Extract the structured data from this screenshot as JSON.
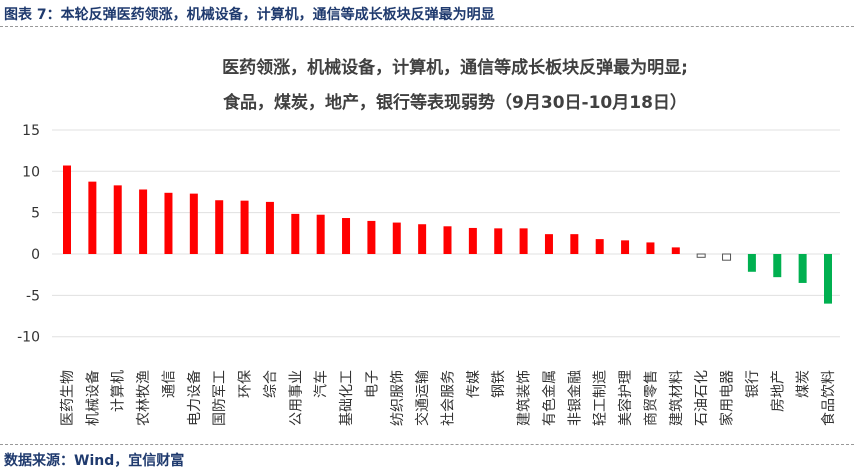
{
  "figure_title": "图表 7：本轮反弹医药领涨，机械设备，计算机，通信等成长板块反弹最为明显",
  "source": "数据来源：Wind，宜信财富",
  "colors": {
    "positive": "#ff0000",
    "negative": "#00b050",
    "near_zero": "#ffffff",
    "grid": "#e0e0e0"
  },
  "chart_data": {
    "type": "bar",
    "title_lines": [
      "医药领涨，机械设备，计算机，通信等成长板块反弹最为明显;",
      "食品，煤炭，地产，银行等表现弱势（9月30日-10月18日）"
    ],
    "categories": [
      "医药生物",
      "机械设备",
      "计算机",
      "农林牧渔",
      "通信",
      "电力设备",
      "国防军工",
      "环保",
      "综合",
      "公用事业",
      "汽车",
      "基础化工",
      "电子",
      "纺织服饰",
      "交通运输",
      "社会服务",
      "传媒",
      "钢铁",
      "建筑装饰",
      "有色金属",
      "非银金融",
      "轻工制造",
      "美容护理",
      "商贸零售",
      "建筑材料",
      "石油石化",
      "家用电器",
      "银行",
      "房地产",
      "煤炭",
      "食品饮料"
    ],
    "values": [
      10.7,
      8.75,
      8.3,
      7.8,
      7.4,
      7.3,
      6.5,
      6.45,
      6.3,
      4.85,
      4.75,
      4.35,
      4.0,
      3.8,
      3.6,
      3.35,
      3.15,
      3.1,
      3.1,
      2.4,
      2.4,
      1.8,
      1.65,
      1.4,
      0.8,
      -0.4,
      -0.75,
      -2.15,
      -2.8,
      -3.5,
      -6.0
    ],
    "ylim": [
      -10,
      15
    ],
    "yticks": [
      15,
      10,
      5,
      0,
      -5,
      -10
    ],
    "grid": true,
    "legend": "none"
  }
}
